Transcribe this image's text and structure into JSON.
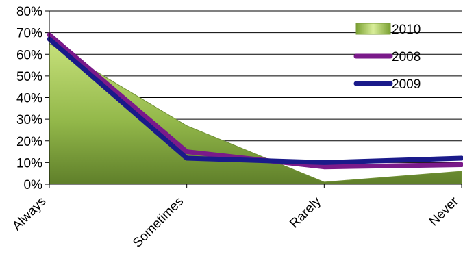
{
  "chart_data": {
    "type": "line",
    "categories": [
      "Always",
      "Sometimes",
      "Rarely",
      "Never"
    ],
    "y_ticks": [
      "0%",
      "10%",
      "20%",
      "30%",
      "40%",
      "50%",
      "60%",
      "70%",
      "80%"
    ],
    "ylim": [
      0,
      80
    ],
    "grid": true,
    "legend_position": "top-right",
    "series": [
      {
        "name": "2010",
        "style": "area",
        "color": "#8fb442",
        "values": [
          65,
          27,
          1,
          6
        ]
      },
      {
        "name": "2008",
        "style": "line",
        "color": "#7a1a8a",
        "values": [
          69,
          15,
          8,
          9
        ]
      },
      {
        "name": "2009",
        "style": "line",
        "color": "#1a1a8a",
        "values": [
          67,
          12,
          10,
          12
        ]
      }
    ]
  }
}
